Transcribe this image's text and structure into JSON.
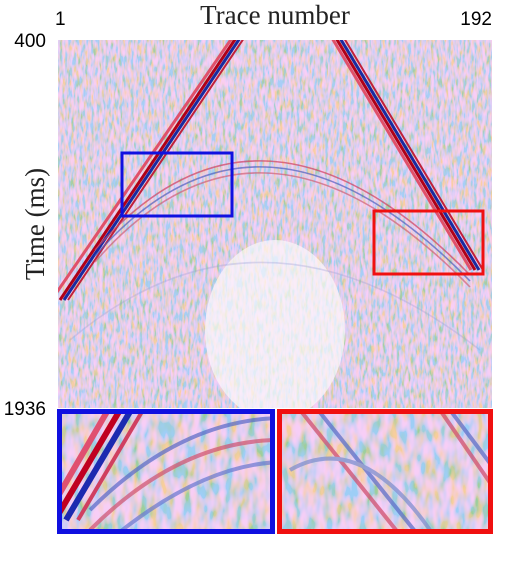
{
  "chart_data": {
    "type": "image",
    "title": "Trace number",
    "y_label": "Time (ms)",
    "xlim": [
      1,
      192
    ],
    "ylim": [
      400,
      1936
    ],
    "xticks": [
      1,
      192
    ],
    "yticks": [
      400,
      1936
    ]
  }
}
